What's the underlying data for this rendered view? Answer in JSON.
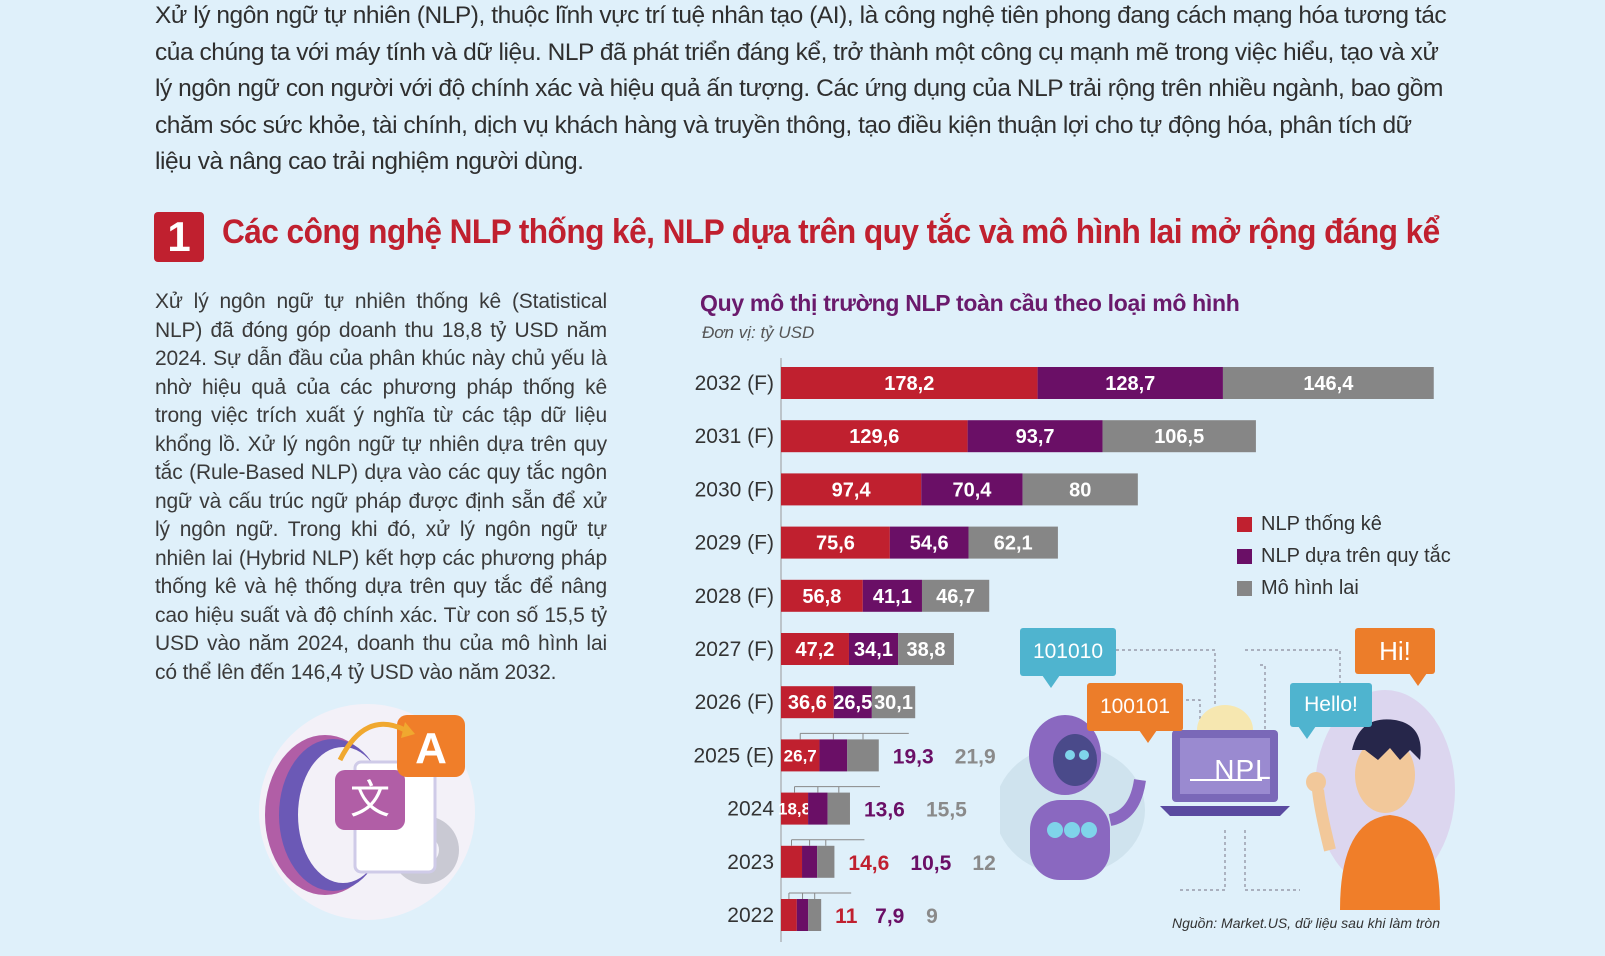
{
  "intro_text": "Xử lý ngôn ngữ tự nhiên (NLP), thuộc lĩnh vực trí tuệ nhân tạo (AI), là công nghệ tiên phong đang cách mạng hóa tương tác của chúng ta với máy tính và dữ liệu. NLP đã phát triển đáng kể, trở thành một công cụ mạnh mẽ trong việc hiểu, tạo và xử lý ngôn ngữ con người với độ chính xác và hiệu quả ấn tượng. Các ứng dụng của NLP trải rộng trên nhiều ngành, bao gồm chăm sóc sức khỏe, tài chính, dịch vụ khách hàng và truyền thông, tạo điều kiện thuận lợi cho tự động hóa, phân tích dữ liệu và nâng cao trải nghiệm người dùng.",
  "section": {
    "number": "1",
    "title": "Các công nghệ NLP thống kê, NLP dựa trên quy tắc và mô hình lai mở rộng đáng kể"
  },
  "body_text": "Xử lý ngôn ngữ tự nhiên thống kê (Statistical NLP) đã đóng góp doanh thu 18,8 tỷ USD năm 2024. Sự dẫn đầu của phân khúc này chủ yếu là nhờ hiệu quả của các phương pháp thống kê trong việc trích xuất ý nghĩa từ các tập dữ liệu khổng lồ. Xử lý ngôn ngữ tự nhiên dựa trên quy tắc (Rule-Based NLP) dựa vào các quy tắc ngôn ngữ và cấu trúc ngữ pháp được định sẵn để xử lý ngôn ngữ. Trong khi đó, xử lý ngôn ngữ tự nhiên lai (Hybrid NLP) kết hợp các phương pháp thống kê và hệ thống dựa trên quy tắc để nâng cao hiệu suất và độ chính xác. Từ con số 15,5 tỷ USD vào năm 2024, doanh thu của mô hình lai có thể lên đến 146,4 tỷ USD vào năm 2032.",
  "chart_data": {
    "type": "bar",
    "orientation": "horizontal",
    "stacked": true,
    "title": "Quy mô thị trường NLP toàn cầu theo loại mô hình",
    "unit": "Đơn vị: tỷ USD",
    "categories": [
      "2032 (F)",
      "2031 (F)",
      "2030 (F)",
      "2029 (F)",
      "2028 (F)",
      "2027 (F)",
      "2026 (F)",
      "2025 (E)",
      "2024",
      "2023",
      "2022"
    ],
    "series": [
      {
        "name": "NLP thống kê",
        "color": "#c0202f",
        "values": [
          178.2,
          129.6,
          97.4,
          75.6,
          56.8,
          47.2,
          36.6,
          26.7,
          18.8,
          14.6,
          11
        ],
        "labels": [
          "178,2",
          "129,6",
          "97,4",
          "75,6",
          "56,8",
          "47,2",
          "36,6",
          "26,7",
          "18,8",
          "14,6",
          "11"
        ]
      },
      {
        "name": "NLP dựa trên quy tắc",
        "color": "#6a0f66",
        "values": [
          128.7,
          93.7,
          70.4,
          54.6,
          41.1,
          34.1,
          26.5,
          19.3,
          13.6,
          10.5,
          7.9
        ],
        "labels": [
          "128,7",
          "93,7",
          "70,4",
          "54,6",
          "41,1",
          "34,1",
          "26,5",
          "19,3",
          "13,6",
          "10,5",
          "7,9"
        ]
      },
      {
        "name": "Mô hình lai",
        "color": "#868686",
        "values": [
          146.4,
          106.5,
          80,
          62.1,
          46.7,
          38.8,
          30.1,
          21.9,
          15.5,
          12,
          9
        ],
        "labels": [
          "146,4",
          "106,5",
          "80",
          "62,1",
          "46,7",
          "38,8",
          "30,1",
          "21,9",
          "15,5",
          "12",
          "9"
        ]
      }
    ],
    "legend_position": "right"
  },
  "source": "Nguồn: Market.US, dữ liệu sau khi làm tròn",
  "illustration": {
    "bubble_1": "101010",
    "bubble_2": "100101",
    "bubble_3": "Hi!",
    "bubble_4": "Hello!",
    "laptop_label": "NPL",
    "translate_letter": "A",
    "translate_glyph": "文"
  }
}
